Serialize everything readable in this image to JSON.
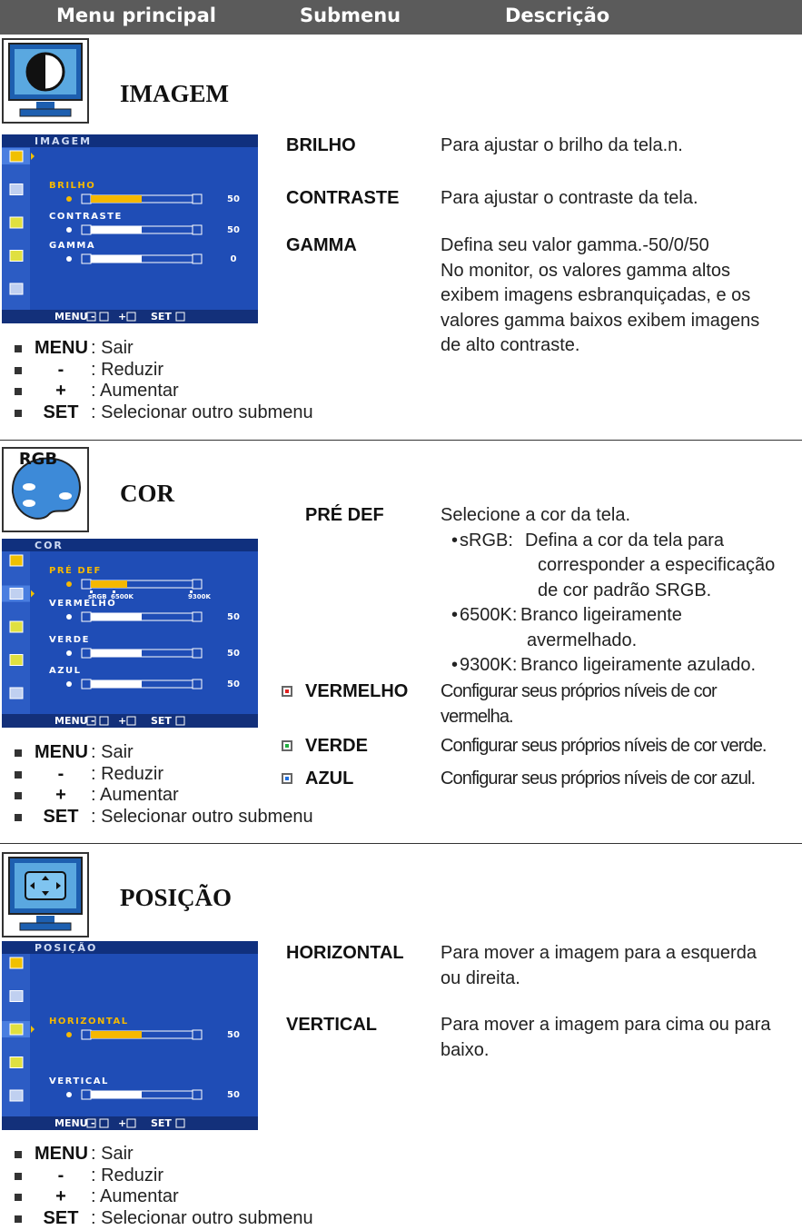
{
  "header": {
    "columns": [
      "Menu principal",
      "Submenu",
      "Descrição"
    ]
  },
  "sections": [
    {
      "title": "IMAGEM",
      "osd": {
        "title": "IMAGEM",
        "items": [
          {
            "label": "BRILHO",
            "value": 50
          },
          {
            "label": "CONTRASTE",
            "value": 50
          },
          {
            "label": "GAMMA",
            "value": 0
          }
        ],
        "footer": [
          "MENU",
          "-",
          "+",
          "SET"
        ]
      },
      "submenus": [
        {
          "name": "BRILHO",
          "description": [
            "Para ajustar o brilho da tela.n."
          ]
        },
        {
          "name": "CONTRASTE",
          "description": [
            "Para ajustar o contraste da tela."
          ]
        },
        {
          "name": "GAMMA",
          "description": [
            "Defina seu valor gamma.-50/0/50",
            "No monitor, os valores gamma altos",
            "exibem imagens esbranquiçadas, e os",
            "valores gamma baixos exibem imagens",
            "de alto contraste."
          ]
        }
      ],
      "keys": [
        {
          "key": "MENU",
          "action": ": Sair"
        },
        {
          "key": "-",
          "action": ": Reduzir"
        },
        {
          "key": "+",
          "action": ": Aumentar"
        },
        {
          "key": "SET",
          "action": ": Selecionar outro submenu"
        }
      ]
    },
    {
      "title": "COR",
      "icon_label": "RGB",
      "osd": {
        "title": "COR",
        "items": [
          {
            "label": "PRÉ DEF",
            "scale": [
              "sRGB",
              "6500K",
              "9300K"
            ]
          },
          {
            "label": "VERMELHO",
            "value": 50
          },
          {
            "label": "VERDE",
            "value": 50
          },
          {
            "label": "AZUL",
            "value": 50
          }
        ],
        "footer": [
          "MENU",
          "-",
          "+",
          "SET"
        ]
      },
      "submenus": [
        {
          "name": "PRÉ DEF",
          "description": {
            "intro": "Selecione a cor da tela.",
            "options": [
              {
                "name": "sRGB:",
                "lines": [
                  "Defina a cor da tela para",
                  "corresponder a especificação",
                  "de cor padrão SRGB."
                ]
              },
              {
                "name": "6500K:",
                "lines": [
                  "Branco ligeiramente",
                  "avermelhado."
                ]
              },
              {
                "name": "9300K:",
                "lines": [
                  "Branco ligeiramente azulado."
                ]
              }
            ]
          }
        },
        {
          "name": "VERMELHO",
          "color": "#e02020",
          "description": [
            "Configurar seus próprios níveis de cor",
            "vermelha."
          ]
        },
        {
          "name": "VERDE",
          "color": "#20b040",
          "description": [
            "Configurar seus próprios níveis de cor verde."
          ]
        },
        {
          "name": "AZUL",
          "color": "#2070e0",
          "description": [
            "Configurar seus próprios níveis de cor azul."
          ]
        }
      ],
      "keys": [
        {
          "key": "MENU",
          "action": ": Sair"
        },
        {
          "key": "-",
          "action": ": Reduzir"
        },
        {
          "key": "+",
          "action": ": Aumentar"
        },
        {
          "key": "SET",
          "action": ": Selecionar outro submenu"
        }
      ]
    },
    {
      "title": "POSIÇÃO",
      "osd": {
        "title": "POSIÇÃO",
        "items": [
          {
            "label": "HORIZONTAL",
            "value": 50
          },
          {
            "label": "VERTICAL",
            "value": 50
          }
        ],
        "footer": [
          "MENU",
          "-",
          "+",
          "SET"
        ]
      },
      "submenus": [
        {
          "name": "HORIZONTAL",
          "description": [
            "Para mover a imagem para a esquerda",
            "ou direita."
          ]
        },
        {
          "name": "VERTICAL",
          "description": [
            "Para mover a imagem para cima ou para",
            "baixo."
          ]
        }
      ],
      "keys": [
        {
          "key": "MENU",
          "action": ": Sair"
        },
        {
          "key": "-",
          "action": ": Reduzir"
        },
        {
          "key": "+",
          "action": ": Aumentar"
        },
        {
          "key": "SET",
          "action": ": Selecionar outro submenu"
        }
      ]
    }
  ]
}
